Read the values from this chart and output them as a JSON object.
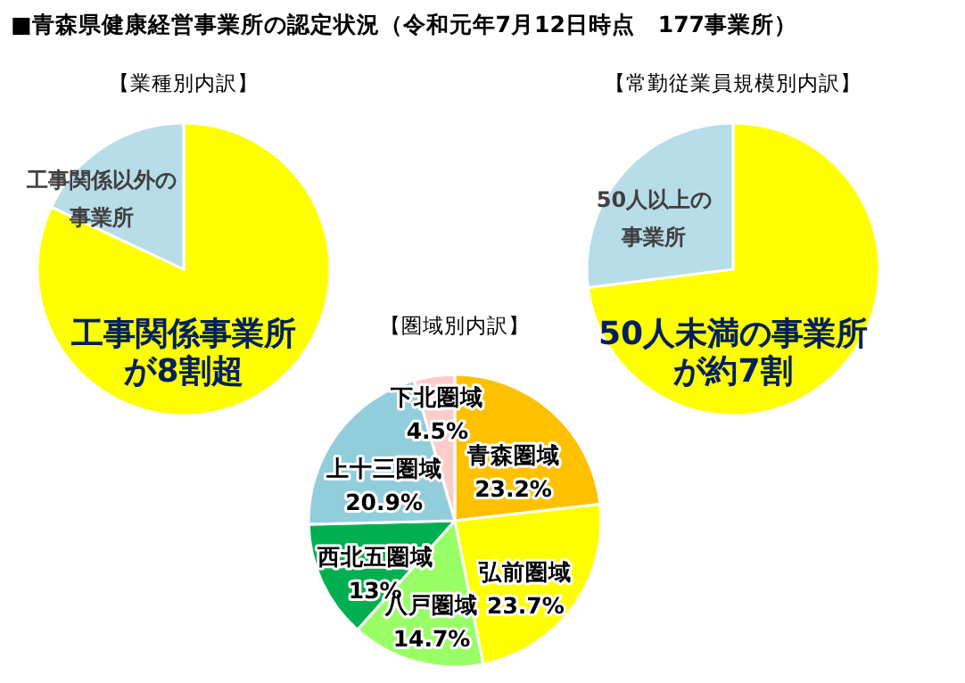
{
  "chart_data": [
    {
      "type": "pie",
      "title": "■青森県健康経営事業所の認定状況（令和元年7月12日時点　177事業所）",
      "subtitle": "【業種別内訳】",
      "categories": [
        "工事関係事業所が8割超",
        "工事関係以外の事業所"
      ],
      "values": [
        82,
        18
      ],
      "colors": [
        "#ffff00",
        "#b7dde8"
      ]
    },
    {
      "type": "pie",
      "title": "【常勤従業員規模別内訳】",
      "categories": [
        "50人未満の事業所が約7割",
        "50人以上の事業所"
      ],
      "values": [
        73,
        27
      ],
      "colors": [
        "#ffff00",
        "#b7dde8"
      ]
    },
    {
      "type": "pie",
      "title": "【圏域別内訳】",
      "categories": [
        "青森圏域",
        "弘前圏域",
        "八戸圏域",
        "西北五圏域",
        "上十三圏域",
        "下北圏域"
      ],
      "values": [
        23.2,
        23.7,
        14.7,
        13,
        20.9,
        4.5
      ],
      "value_labels": [
        "23.2%",
        "23.7%",
        "14.7%",
        "13%",
        "20.9%",
        "4.5%"
      ],
      "colors": [
        "#ffc000",
        "#ffff00",
        "#99ff66",
        "#00b050",
        "#92cddc",
        "#ffcccc"
      ]
    }
  ]
}
